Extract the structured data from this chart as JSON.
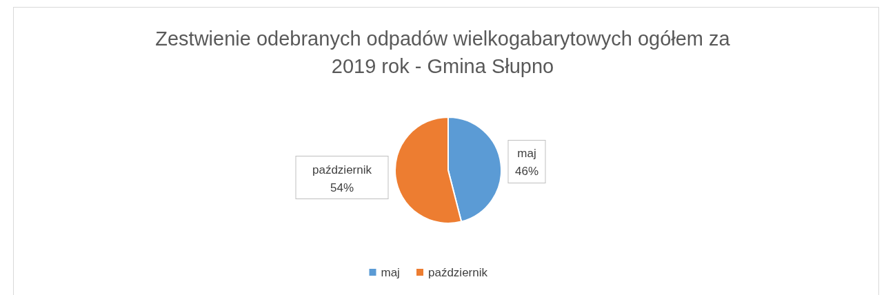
{
  "chart_data": {
    "type": "pie",
    "title": "Zestwienie odebranych odpadów wielkogabarytowych ogółem za 2019 rok - Gmina Słupno",
    "categories": [
      "maj",
      "październik"
    ],
    "values": [
      46,
      54
    ],
    "colors": [
      "#5b9bd5",
      "#ed7d31"
    ],
    "value_labels": [
      "46%",
      "54%"
    ],
    "legend": "bottom"
  }
}
